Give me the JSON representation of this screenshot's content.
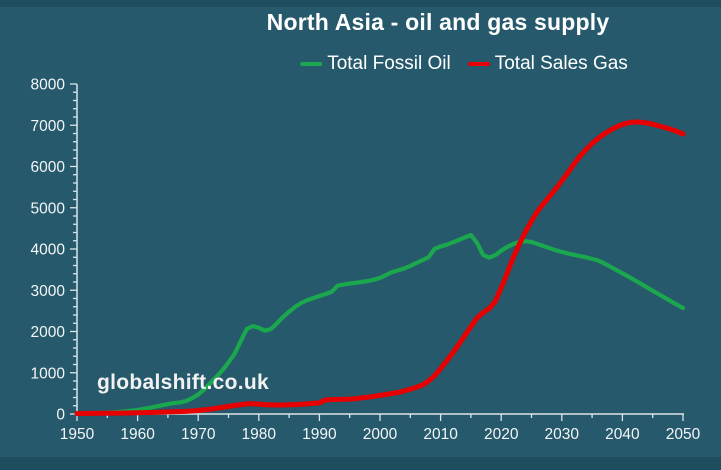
{
  "title": "North Asia - oil and gas supply",
  "watermark": "globalshift.co.uk",
  "colors": {
    "background": "#26596B",
    "frame_band": "#1E4E5E",
    "axis": "#DCE4E7",
    "tick_label": "#F2F6F7",
    "title_text": "#FFFFFF",
    "oil_green": "#1BA74D",
    "gas_red": "#E60000"
  },
  "legend": {
    "items": [
      {
        "label": "Total Fossil Oil",
        "color": "#1BA74D"
      },
      {
        "label": "Total Sales Gas",
        "color": "#E60000"
      }
    ]
  },
  "chart_data": {
    "type": "line",
    "title": "North Asia - oil and gas supply",
    "xlabel": "",
    "ylabel": "",
    "xlim": [
      1950,
      2050
    ],
    "ylim": [
      0,
      8000
    ],
    "x_ticks_major": [
      1950,
      1960,
      1970,
      1980,
      1990,
      2000,
      2010,
      2020,
      2030,
      2040,
      2050
    ],
    "x_tick_minor_step": 5,
    "y_ticks_major": [
      0,
      1000,
      2000,
      3000,
      4000,
      5000,
      6000,
      7000,
      8000
    ],
    "y_tick_minor_step": 200,
    "grid": false,
    "legend_position": "top",
    "series": [
      {
        "name": "Total Fossil Oil",
        "color": "#1BA74D",
        "stroke_width": 4.2,
        "points": [
          [
            1950,
            5
          ],
          [
            1952,
            12
          ],
          [
            1954,
            25
          ],
          [
            1956,
            42
          ],
          [
            1958,
            65
          ],
          [
            1960,
            100
          ],
          [
            1962,
            150
          ],
          [
            1964,
            210
          ],
          [
            1965,
            240
          ],
          [
            1966,
            265
          ],
          [
            1967,
            282
          ],
          [
            1968,
            315
          ],
          [
            1969,
            385
          ],
          [
            1970,
            470
          ],
          [
            1971,
            600
          ],
          [
            1972,
            750
          ],
          [
            1973,
            900
          ],
          [
            1974,
            1060
          ],
          [
            1975,
            1250
          ],
          [
            1976,
            1460
          ],
          [
            1977,
            1760
          ],
          [
            1978,
            2060
          ],
          [
            1979,
            2130
          ],
          [
            1980,
            2090
          ],
          [
            1981,
            2020
          ],
          [
            1982,
            2060
          ],
          [
            1983,
            2200
          ],
          [
            1984,
            2350
          ],
          [
            1985,
            2480
          ],
          [
            1986,
            2600
          ],
          [
            1987,
            2690
          ],
          [
            1988,
            2760
          ],
          [
            1989,
            2810
          ],
          [
            1990,
            2860
          ],
          [
            1991,
            2910
          ],
          [
            1992,
            2960
          ],
          [
            1993,
            3110
          ],
          [
            1994,
            3140
          ],
          [
            1995,
            3160
          ],
          [
            1996,
            3180
          ],
          [
            1997,
            3200
          ],
          [
            1998,
            3225
          ],
          [
            1999,
            3255
          ],
          [
            2000,
            3300
          ],
          [
            2001,
            3370
          ],
          [
            2002,
            3440
          ],
          [
            2003,
            3480
          ],
          [
            2004,
            3530
          ],
          [
            2005,
            3590
          ],
          [
            2006,
            3660
          ],
          [
            2007,
            3730
          ],
          [
            2008,
            3800
          ],
          [
            2009,
            4000
          ],
          [
            2010,
            4060
          ],
          [
            2011,
            4105
          ],
          [
            2012,
            4160
          ],
          [
            2013,
            4220
          ],
          [
            2014,
            4280
          ],
          [
            2015,
            4340
          ],
          [
            2016,
            4150
          ],
          [
            2017,
            3860
          ],
          [
            2018,
            3790
          ],
          [
            2019,
            3850
          ],
          [
            2020,
            3960
          ],
          [
            2021,
            4050
          ],
          [
            2022,
            4120
          ],
          [
            2023,
            4170
          ],
          [
            2024,
            4190
          ],
          [
            2025,
            4170
          ],
          [
            2026,
            4120
          ],
          [
            2027,
            4070
          ],
          [
            2028,
            4020
          ],
          [
            2029,
            3970
          ],
          [
            2030,
            3930
          ],
          [
            2031,
            3890
          ],
          [
            2032,
            3860
          ],
          [
            2033,
            3830
          ],
          [
            2034,
            3800
          ],
          [
            2035,
            3760
          ],
          [
            2036,
            3720
          ],
          [
            2037,
            3650
          ],
          [
            2038,
            3570
          ],
          [
            2039,
            3490
          ],
          [
            2040,
            3410
          ],
          [
            2041,
            3330
          ],
          [
            2042,
            3245
          ],
          [
            2043,
            3160
          ],
          [
            2044,
            3075
          ],
          [
            2045,
            2990
          ],
          [
            2046,
            2905
          ],
          [
            2047,
            2820
          ],
          [
            2048,
            2735
          ],
          [
            2049,
            2650
          ],
          [
            2050,
            2570
          ]
        ]
      },
      {
        "name": "Total Sales Gas",
        "color": "#E60000",
        "stroke_width": 5,
        "points": [
          [
            1950,
            12
          ],
          [
            1955,
            18
          ],
          [
            1960,
            28
          ],
          [
            1963,
            40
          ],
          [
            1965,
            50
          ],
          [
            1968,
            62
          ],
          [
            1970,
            85
          ],
          [
            1972,
            118
          ],
          [
            1974,
            160
          ],
          [
            1975,
            185
          ],
          [
            1976,
            205
          ],
          [
            1977,
            226
          ],
          [
            1978,
            245
          ],
          [
            1979,
            248
          ],
          [
            1980,
            240
          ],
          [
            1981,
            228
          ],
          [
            1982,
            220
          ],
          [
            1983,
            218
          ],
          [
            1984,
            218
          ],
          [
            1985,
            222
          ],
          [
            1986,
            228
          ],
          [
            1987,
            236
          ],
          [
            1988,
            246
          ],
          [
            1989,
            256
          ],
          [
            1990,
            270
          ],
          [
            1991,
            342
          ],
          [
            1992,
            348
          ],
          [
            1993,
            352
          ],
          [
            1994,
            356
          ],
          [
            1995,
            362
          ],
          [
            1996,
            374
          ],
          [
            1997,
            390
          ],
          [
            1998,
            408
          ],
          [
            1999,
            428
          ],
          [
            2000,
            452
          ],
          [
            2001,
            475
          ],
          [
            2002,
            498
          ],
          [
            2003,
            524
          ],
          [
            2004,
            560
          ],
          [
            2005,
            602
          ],
          [
            2006,
            650
          ],
          [
            2007,
            702
          ],
          [
            2008,
            800
          ],
          [
            2009,
            925
          ],
          [
            2010,
            1100
          ],
          [
            2011,
            1290
          ],
          [
            2012,
            1480
          ],
          [
            2013,
            1690
          ],
          [
            2014,
            1900
          ],
          [
            2015,
            2120
          ],
          [
            2016,
            2330
          ],
          [
            2017,
            2455
          ],
          [
            2018,
            2555
          ],
          [
            2019,
            2725
          ],
          [
            2020,
            3060
          ],
          [
            2021,
            3420
          ],
          [
            2022,
            3800
          ],
          [
            2023,
            4120
          ],
          [
            2024,
            4420
          ],
          [
            2025,
            4680
          ],
          [
            2026,
            4920
          ],
          [
            2027,
            5100
          ],
          [
            2028,
            5280
          ],
          [
            2029,
            5460
          ],
          [
            2030,
            5650
          ],
          [
            2031,
            5850
          ],
          [
            2032,
            6060
          ],
          [
            2033,
            6250
          ],
          [
            2034,
            6410
          ],
          [
            2035,
            6560
          ],
          [
            2036,
            6680
          ],
          [
            2037,
            6790
          ],
          [
            2038,
            6880
          ],
          [
            2039,
            6960
          ],
          [
            2040,
            7020
          ],
          [
            2041,
            7060
          ],
          [
            2042,
            7080
          ],
          [
            2043,
            7075
          ],
          [
            2044,
            7055
          ],
          [
            2045,
            7025
          ],
          [
            2046,
            6985
          ],
          [
            2047,
            6945
          ],
          [
            2048,
            6900
          ],
          [
            2049,
            6850
          ],
          [
            2050,
            6790
          ]
        ]
      }
    ]
  }
}
